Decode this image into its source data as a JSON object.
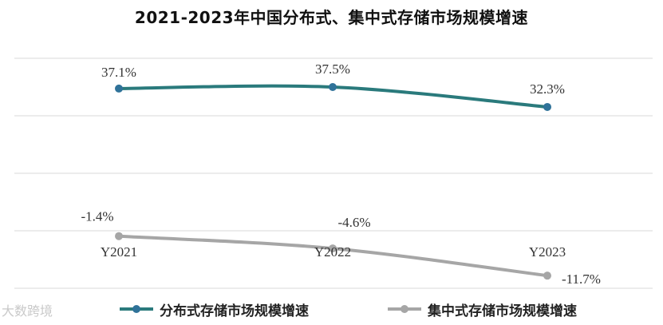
{
  "title": "2021-2023年中国分布式、集中式存储市场规模增速",
  "watermark": "大数跨境",
  "chart_data": {
    "type": "line",
    "title": "2021-2023年中国分布式、集中式存储市场规模增速",
    "categories": [
      "Y2021",
      "Y2022",
      "Y2023"
    ],
    "series": [
      {
        "name": "分布式存储市场规模增速",
        "values": [
          37.1,
          37.5,
          32.3
        ],
        "labels": [
          "37.1%",
          "37.5%",
          "32.3%"
        ],
        "color": "#2a7a7c",
        "marker": "#2f7299"
      },
      {
        "name": "集中式存储市场规模增速",
        "values": [
          -1.4,
          -4.6,
          -11.7
        ],
        "labels": [
          "-1.4%",
          "-4.6%",
          "-11.7%"
        ],
        "color": "#a6a6a6",
        "marker": "#a6a6a6"
      }
    ],
    "ylim": [
      -15,
      45
    ],
    "gridlines": [
      -15,
      0,
      15,
      30,
      45
    ],
    "grid": true,
    "legend": "bottom"
  }
}
